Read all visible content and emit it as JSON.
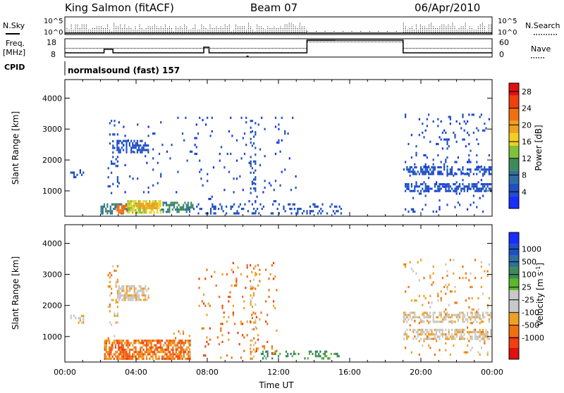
{
  "header": {
    "station": "King Salmon (fitACF)",
    "beam": "Beam 07",
    "date": "06/Apr/2010"
  },
  "strip": {
    "nsky_label": "N.Sky",
    "nsearch_label": "N.Search",
    "count_high": "10^5",
    "count_low": "10^0",
    "freq_label_1": "Freq.",
    "freq_label_2": "[MHz]",
    "freq_ticks": [
      "18",
      "8"
    ],
    "nave_label": "Nave",
    "nave_ticks": [
      "60",
      "0"
    ],
    "cpid_label": "CPID",
    "program": "normalsound (fast) 157"
  },
  "colors": {
    "power_scale": [
      "#1a2dff",
      "#1f4fc4",
      "#2f6f9e",
      "#3f8a5a",
      "#7fc23a",
      "#f0d020",
      "#f0a020",
      "#f07010",
      "#f04010",
      "#e01010"
    ],
    "velocity_scale": [
      "#e01010",
      "#f04010",
      "#f07010",
      "#f0a020",
      "#c8c8c8",
      "#c8c8c8",
      "#5ab82a",
      "#3f8a5a",
      "#2f6f9e",
      "#1f4fc4",
      "#1a2dff"
    ]
  },
  "chart_data": [
    {
      "type": "heatmap",
      "panel": "power",
      "ylabel": "Slant Range [km]",
      "ylim": [
        180,
        4600
      ],
      "xlim_hours": [
        0,
        24
      ],
      "yticks": [
        "1000",
        "2000",
        "3000",
        "4000"
      ],
      "colorbar": {
        "label": "Power [dB]",
        "ticks": [
          "4",
          "8",
          "12",
          "16",
          "20",
          "24",
          "28"
        ],
        "range": [
          0,
          30
        ]
      },
      "regions": [
        {
          "t0": 0.3,
          "t1": 1.0,
          "r0": 1450,
          "r1": 1700,
          "value": 3,
          "density": 0.35
        },
        {
          "t0": 2.9,
          "t1": 4.7,
          "r0": 2250,
          "r1": 2650,
          "value": 4,
          "density": 0.55
        },
        {
          "t0": 2.4,
          "t1": 3.0,
          "r0": 900,
          "r1": 3300,
          "value": 4,
          "density": 0.12
        },
        {
          "t0": 2.0,
          "t1": 3.6,
          "r0": 300,
          "r1": 600,
          "value": 8,
          "density": 0.5
        },
        {
          "t0": 2.9,
          "t1": 3.5,
          "r0": 300,
          "r1": 550,
          "value": 22,
          "density": 0.8
        },
        {
          "t0": 3.5,
          "t1": 5.4,
          "r0": 330,
          "r1": 700,
          "value": 15,
          "density": 0.75
        },
        {
          "t0": 4.0,
          "t1": 5.2,
          "r0": 430,
          "r1": 620,
          "value": 19,
          "density": 0.7
        },
        {
          "t0": 5.4,
          "t1": 7.2,
          "r0": 300,
          "r1": 650,
          "value": 9,
          "density": 0.55
        },
        {
          "t0": 7.2,
          "t1": 15.5,
          "r0": 300,
          "r1": 600,
          "value": 4,
          "density": 0.18
        },
        {
          "t0": 10.4,
          "t1": 10.7,
          "r0": 300,
          "r1": 3300,
          "value": 4,
          "density": 0.25
        },
        {
          "t0": 3.0,
          "t1": 13.0,
          "r0": 700,
          "r1": 3400,
          "value": 3,
          "density": 0.03
        },
        {
          "t0": 19.0,
          "t1": 23.9,
          "r0": 1550,
          "r1": 1800,
          "value": 4,
          "density": 0.45
        },
        {
          "t0": 19.0,
          "t1": 23.9,
          "r0": 1000,
          "r1": 1250,
          "value": 4,
          "density": 0.55
        },
        {
          "t0": 19.0,
          "t1": 23.9,
          "r0": 350,
          "r1": 3500,
          "value": 3,
          "density": 0.06
        }
      ]
    },
    {
      "type": "heatmap",
      "panel": "velocity",
      "ylabel": "Slant Range [km]",
      "xlabel": "Time UT",
      "ylim": [
        180,
        4600
      ],
      "xlim_hours": [
        0,
        24
      ],
      "yticks": [
        "1000",
        "2000",
        "3000",
        "4000"
      ],
      "xticks": [
        "00:00",
        "04:00",
        "08:00",
        "12:00",
        "16:00",
        "20:00",
        "00:00"
      ],
      "colorbar": {
        "label": "Velocity [m s-1]",
        "ticks": [
          "-1000",
          "-500",
          "-100",
          "-25",
          "25",
          "100",
          "500",
          "1000"
        ]
      },
      "regions": [
        {
          "t0": 0.3,
          "t1": 1.0,
          "r0": 1450,
          "r1": 1700,
          "value": 4,
          "density": 0.4
        },
        {
          "t0": 3.0,
          "t1": 4.7,
          "r0": 2200,
          "r1": 2650,
          "value": 4,
          "density": 0.6
        },
        {
          "t0": 2.4,
          "t1": 3.0,
          "r0": 700,
          "r1": 3300,
          "value": 3,
          "density": 0.18
        },
        {
          "t0": 2.2,
          "t1": 7.0,
          "r0": 300,
          "r1": 900,
          "value": 2,
          "density": 0.7
        },
        {
          "t0": 6.0,
          "t1": 7.0,
          "r0": 300,
          "r1": 1200,
          "value": 3,
          "density": 0.12
        },
        {
          "t0": 10.4,
          "t1": 10.7,
          "r0": 300,
          "r1": 3300,
          "value": 3,
          "density": 0.2
        },
        {
          "t0": 11.0,
          "t1": 15.4,
          "r0": 320,
          "r1": 550,
          "value": 7,
          "density": 0.3
        },
        {
          "t0": 7.5,
          "t1": 12.0,
          "r0": 300,
          "r1": 3400,
          "value": 2,
          "density": 0.05
        },
        {
          "t0": 19.0,
          "t1": 23.9,
          "r0": 1500,
          "r1": 1800,
          "value": 4,
          "density": 0.5
        },
        {
          "t0": 19.0,
          "t1": 23.9,
          "r0": 950,
          "r1": 1250,
          "value": 4,
          "density": 0.55
        },
        {
          "t0": 19.0,
          "t1": 23.9,
          "r0": 400,
          "r1": 3500,
          "value": 3,
          "density": 0.07
        }
      ]
    }
  ]
}
